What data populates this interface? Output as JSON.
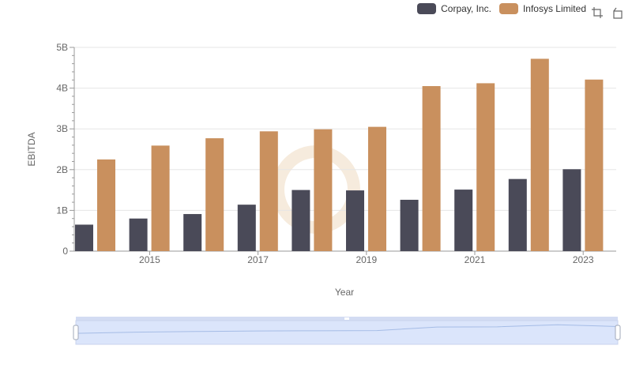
{
  "chart_data": {
    "type": "bar",
    "xlabel": "Year",
    "ylabel": "EBITDA",
    "categories": [
      "2014",
      "2015",
      "2016",
      "2017",
      "2018",
      "2019",
      "2020",
      "2021",
      "2022",
      "2023"
    ],
    "x_tick_labels": [
      "2015",
      "2017",
      "2019",
      "2021",
      "2023"
    ],
    "y_tick_labels": [
      "0",
      "1B",
      "2B",
      "3B",
      "4B",
      "5B"
    ],
    "ylim": [
      0,
      5000000000
    ],
    "grid": true,
    "legend_position": "top-right",
    "series": [
      {
        "name": "Corpay, Inc.",
        "color": "#4a4a58",
        "values": [
          650000000,
          800000000,
          910000000,
          1140000000,
          1500000000,
          1490000000,
          1260000000,
          1510000000,
          1770000000,
          2010000000
        ]
      },
      {
        "name": "Infosys Limited",
        "color": "#c9905e",
        "values": [
          2250000000,
          2590000000,
          2770000000,
          2940000000,
          2990000000,
          3050000000,
          4050000000,
          4120000000,
          4720000000,
          4210000000
        ]
      }
    ]
  },
  "legend": {
    "items": [
      {
        "label": "Corpay, Inc.",
        "color": "#4a4a58"
      },
      {
        "label": "Infosys Limited",
        "color": "#c9905e"
      }
    ]
  },
  "toolbox": {
    "icons": [
      "zoom-icon",
      "restore-icon"
    ]
  },
  "data_zoom": {
    "start_fraction": 0,
    "end_fraction": 1,
    "handle_color": "#d3dcf3",
    "fill_color": "#dbe5fb"
  }
}
